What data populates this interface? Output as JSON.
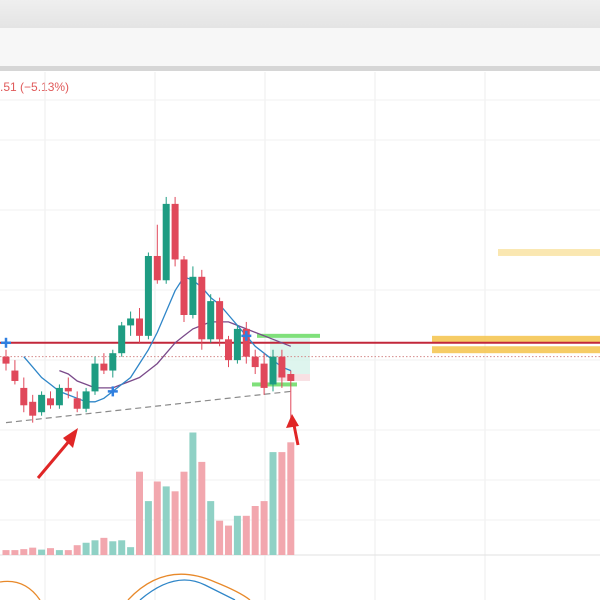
{
  "header": {
    "change_text": ".51 (−5.13%)"
  },
  "chart_data": {
    "type": "candlestick",
    "colors": {
      "up": "#1e9c82",
      "down": "#e0485a",
      "volume_up": "#8fd1c5",
      "volume_down": "#f2a7ae",
      "ma_fast": "#2f86c8",
      "ma_slow": "#7a4a8a",
      "level_line": "#c2273a",
      "zone": "#f4c34a",
      "zone_light": "#f9e4a8",
      "arrow": "#e02626",
      "marker": "#2f7fe0"
    },
    "candles": [
      {
        "o": 34,
        "h": 36,
        "l": 30,
        "c": 32
      },
      {
        "o": 30,
        "h": 33,
        "l": 26,
        "c": 27
      },
      {
        "o": 25,
        "h": 28,
        "l": 18,
        "c": 20
      },
      {
        "o": 21,
        "h": 23,
        "l": 15,
        "c": 17
      },
      {
        "o": 18,
        "h": 24,
        "l": 17,
        "c": 23
      },
      {
        "o": 22,
        "h": 24,
        "l": 19,
        "c": 20
      },
      {
        "o": 20,
        "h": 26,
        "l": 19,
        "c": 25
      },
      {
        "o": 25,
        "h": 28,
        "l": 22,
        "c": 24
      },
      {
        "o": 22,
        "h": 24,
        "l": 18,
        "c": 19
      },
      {
        "o": 19,
        "h": 25,
        "l": 18,
        "c": 24
      },
      {
        "o": 24,
        "h": 34,
        "l": 23,
        "c": 32
      },
      {
        "o": 32,
        "h": 35,
        "l": 29,
        "c": 30
      },
      {
        "o": 30,
        "h": 36,
        "l": 28,
        "c": 35
      },
      {
        "o": 35,
        "h": 44,
        "l": 34,
        "c": 43
      },
      {
        "o": 43,
        "h": 47,
        "l": 40,
        "c": 45
      },
      {
        "o": 45,
        "h": 48,
        "l": 38,
        "c": 40
      },
      {
        "o": 40,
        "h": 64,
        "l": 39,
        "c": 63
      },
      {
        "o": 63,
        "h": 72,
        "l": 55,
        "c": 56
      },
      {
        "o": 56,
        "h": 80,
        "l": 55,
        "c": 78
      },
      {
        "o": 78,
        "h": 80,
        "l": 60,
        "c": 62
      },
      {
        "o": 62,
        "h": 63,
        "l": 44,
        "c": 46
      },
      {
        "o": 46,
        "h": 60,
        "l": 45,
        "c": 57
      },
      {
        "o": 57,
        "h": 59,
        "l": 36,
        "c": 39
      },
      {
        "o": 39,
        "h": 52,
        "l": 38,
        "c": 50
      },
      {
        "o": 50,
        "h": 51,
        "l": 37,
        "c": 39
      },
      {
        "o": 39,
        "h": 40,
        "l": 31,
        "c": 33
      },
      {
        "o": 33,
        "h": 43,
        "l": 32,
        "c": 42
      },
      {
        "o": 42,
        "h": 44,
        "l": 32,
        "c": 34
      },
      {
        "o": 34,
        "h": 36,
        "l": 29,
        "c": 31
      },
      {
        "o": 32,
        "h": 35,
        "l": 23,
        "c": 25
      },
      {
        "o": 26,
        "h": 36,
        "l": 24,
        "c": 34
      },
      {
        "o": 34,
        "h": 36,
        "l": 25,
        "c": 28
      },
      {
        "o": 29,
        "h": 30,
        "l": 15,
        "c": 27
      }
    ],
    "volume": [
      1,
      1,
      1.2,
      1.5,
      1.1,
      1.4,
      1,
      1,
      2,
      2.5,
      3,
      3.5,
      2.8,
      3,
      1.6,
      17,
      11,
      15,
      14,
      13,
      17,
      25,
      19,
      11,
      7,
      6,
      8,
      8,
      10,
      11,
      21,
      21,
      23
    ],
    "ma_fast": [
      null,
      null,
      34,
      31,
      28,
      26,
      24,
      23,
      22,
      21,
      21,
      22,
      24,
      26,
      28,
      32,
      36,
      41,
      47,
      53,
      57,
      56,
      54,
      51,
      49,
      46,
      43,
      40,
      37,
      35,
      33,
      31,
      30
    ],
    "ma_slow": [
      null,
      null,
      null,
      null,
      null,
      null,
      30,
      29,
      27,
      26,
      25,
      25,
      25,
      26,
      27,
      28,
      30,
      32,
      35,
      38,
      40,
      42,
      43,
      44,
      44,
      44,
      43,
      42,
      41,
      40,
      39,
      38,
      37
    ],
    "level_lines": [
      38,
      34
    ],
    "trendline": [
      [
        0,
        15
      ],
      [
        32,
        24
      ]
    ],
    "zones": [
      {
        "from": 38,
        "to": 40
      },
      {
        "from": 35,
        "to": 37
      },
      {
        "from": 63,
        "to": 65
      }
    ],
    "markers": [
      0,
      12,
      27
    ],
    "annotation_arrows": [
      9,
      32
    ]
  }
}
